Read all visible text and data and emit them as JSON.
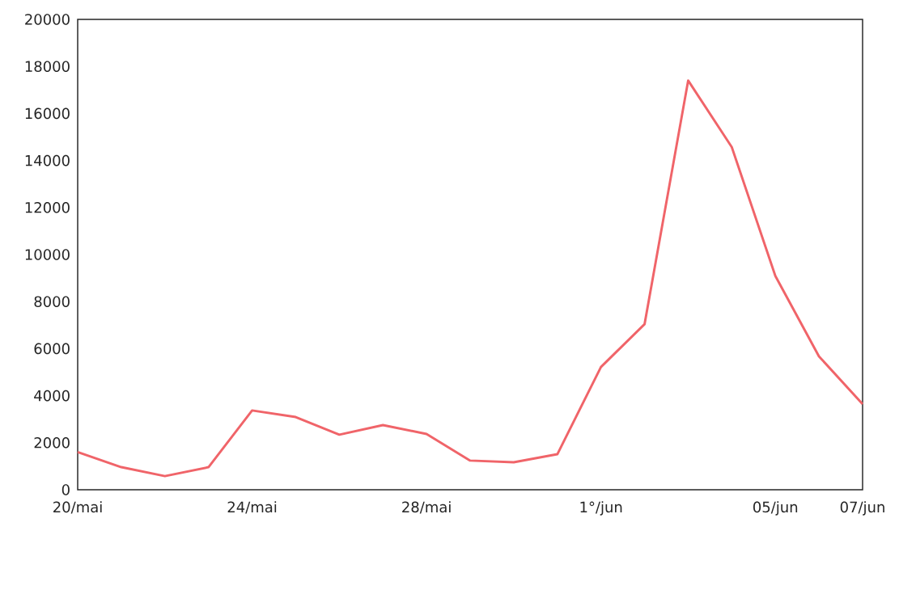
{
  "chart_data": {
    "type": "line",
    "categories": [
      "20/mai",
      null,
      null,
      null,
      "24/mai",
      null,
      null,
      null,
      "28/mai",
      null,
      null,
      null,
      "1°/jun",
      null,
      null,
      null,
      "05/jun",
      null,
      "07/jun"
    ],
    "series": [
      {
        "color": "#f06469",
        "values": [
          1600,
          960,
          580,
          960,
          3370,
          3090,
          2340,
          2750,
          2370,
          1240,
          1170,
          1510,
          5220,
          7040,
          17400,
          14570,
          9090,
          5670,
          3640
        ]
      }
    ],
    "ylim": [
      0,
      20000
    ],
    "yticks": [
      0,
      2000,
      4000,
      6000,
      8000,
      10000,
      12000,
      14000,
      16000,
      18000,
      20000
    ],
    "grid": false,
    "marker": "none",
    "line_style": "solid"
  }
}
